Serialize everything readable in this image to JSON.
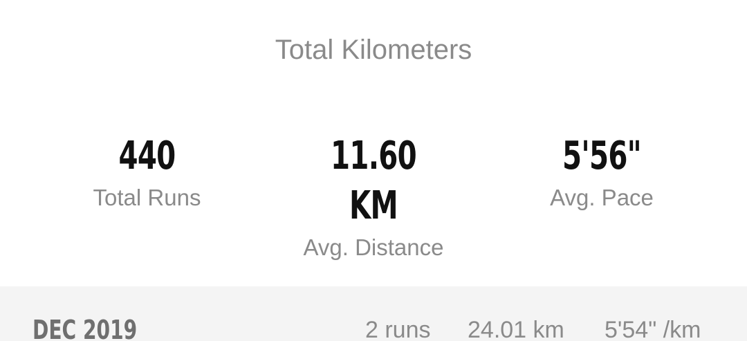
{
  "summary": {
    "total_label": "Total Kilometers",
    "stats": [
      {
        "value": "440",
        "label": "Total Runs"
      },
      {
        "value": "11.60 KM",
        "label": "Avg. Distance"
      },
      {
        "value": "5'56\"",
        "label": "Avg. Pace"
      }
    ]
  },
  "month": {
    "name": "DEC 2019",
    "runs": "2 runs",
    "distance": "24.01 km",
    "pace": "5'54\" /km"
  },
  "colors": {
    "background": "#ffffff",
    "value_text": "#111111",
    "label_text": "#8a8a8a",
    "month_bar": "#f4f4f4",
    "month_name": "#6f6f6f"
  }
}
